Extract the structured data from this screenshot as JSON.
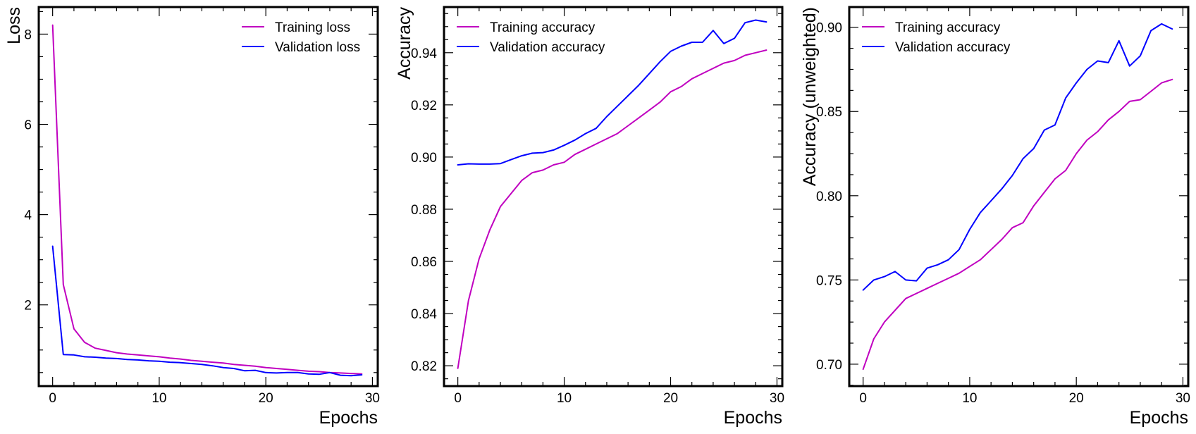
{
  "chart_data": [
    {
      "type": "line",
      "xlabel": "Epochs",
      "ylabel": "Loss",
      "xlim": [
        -1.3,
        30.5
      ],
      "ylim": [
        0.2,
        8.6
      ],
      "xticks": [
        0,
        10,
        20,
        30
      ],
      "yticks": [
        2,
        4,
        6,
        8
      ],
      "ytick_decimals": 0,
      "legend": "top-right",
      "grid": false,
      "x": [
        0,
        1,
        2,
        3,
        4,
        5,
        6,
        7,
        8,
        9,
        10,
        11,
        12,
        13,
        14,
        15,
        16,
        17,
        18,
        19,
        20,
        21,
        22,
        23,
        24,
        25,
        26,
        27,
        28,
        29
      ],
      "series": [
        {
          "name": "Training loss",
          "color": "#c000c0",
          "values": [
            8.2,
            2.45,
            1.47,
            1.17,
            1.04,
            0.99,
            0.94,
            0.91,
            0.89,
            0.87,
            0.85,
            0.82,
            0.8,
            0.77,
            0.75,
            0.73,
            0.71,
            0.68,
            0.66,
            0.64,
            0.61,
            0.59,
            0.57,
            0.55,
            0.53,
            0.52,
            0.5,
            0.49,
            0.48,
            0.47
          ]
        },
        {
          "name": "Validation loss",
          "color": "#0000ff",
          "values": [
            3.3,
            0.9,
            0.89,
            0.85,
            0.84,
            0.82,
            0.81,
            0.79,
            0.78,
            0.76,
            0.75,
            0.73,
            0.72,
            0.7,
            0.68,
            0.65,
            0.61,
            0.59,
            0.54,
            0.55,
            0.5,
            0.49,
            0.5,
            0.5,
            0.47,
            0.46,
            0.5,
            0.44,
            0.43,
            0.45
          ]
        }
      ]
    },
    {
      "type": "line",
      "xlabel": "Epochs",
      "ylabel": "Accuracy",
      "xlim": [
        -1.3,
        30.5
      ],
      "ylim": [
        0.8122,
        0.9575
      ],
      "xticks": [
        0,
        10,
        20,
        30
      ],
      "yticks": [
        0.82,
        0.84,
        0.86,
        0.88,
        0.9,
        0.92,
        0.94
      ],
      "ytick_decimals": 2,
      "legend": "top-left",
      "grid": false,
      "x": [
        0,
        1,
        2,
        3,
        4,
        5,
        6,
        7,
        8,
        9,
        10,
        11,
        12,
        13,
        14,
        15,
        16,
        17,
        18,
        19,
        20,
        21,
        22,
        23,
        24,
        25,
        26,
        27,
        28,
        29
      ],
      "series": [
        {
          "name": "Training accuracy",
          "color": "#c000c0",
          "values": [
            0.819,
            0.845,
            0.861,
            0.872,
            0.881,
            0.886,
            0.891,
            0.894,
            0.895,
            0.897,
            0.898,
            0.901,
            0.903,
            0.905,
            0.907,
            0.909,
            0.912,
            0.915,
            0.918,
            0.921,
            0.925,
            0.927,
            0.93,
            0.932,
            0.934,
            0.936,
            0.937,
            0.939,
            0.94,
            0.941
          ]
        },
        {
          "name": "Validation accuracy",
          "color": "#0000ff",
          "values": [
            0.897,
            0.8974,
            0.8973,
            0.8973,
            0.8975,
            0.899,
            0.9005,
            0.9015,
            0.9017,
            0.9027,
            0.9045,
            0.9065,
            0.909,
            0.911,
            0.9155,
            0.9195,
            0.9235,
            0.9275,
            0.932,
            0.9365,
            0.9405,
            0.9425,
            0.944,
            0.944,
            0.9485,
            0.9435,
            0.9455,
            0.9515,
            0.9525,
            0.9518
          ]
        }
      ]
    },
    {
      "type": "line",
      "xlabel": "Epochs",
      "ylabel": "Accuracy (unweighted)",
      "xlim": [
        -1.3,
        30.5
      ],
      "ylim": [
        0.687,
        0.912
      ],
      "xticks": [
        0,
        10,
        20,
        30
      ],
      "yticks": [
        0.7,
        0.75,
        0.8,
        0.85,
        0.9
      ],
      "ytick_decimals": 2,
      "legend": "top-left",
      "grid": false,
      "x": [
        0,
        1,
        2,
        3,
        4,
        5,
        6,
        7,
        8,
        9,
        10,
        11,
        12,
        13,
        14,
        15,
        16,
        17,
        18,
        19,
        20,
        21,
        22,
        23,
        24,
        25,
        26,
        27,
        28,
        29
      ],
      "series": [
        {
          "name": "Training accuracy",
          "color": "#c000c0",
          "values": [
            0.697,
            0.715,
            0.725,
            0.732,
            0.739,
            0.742,
            0.745,
            0.748,
            0.751,
            0.754,
            0.758,
            0.762,
            0.768,
            0.774,
            0.781,
            0.784,
            0.794,
            0.802,
            0.81,
            0.815,
            0.825,
            0.833,
            0.838,
            0.845,
            0.85,
            0.856,
            0.857,
            0.862,
            0.867,
            0.869
          ]
        },
        {
          "name": "Validation accuracy",
          "color": "#0000ff",
          "values": [
            0.744,
            0.75,
            0.752,
            0.755,
            0.75,
            0.7495,
            0.757,
            0.759,
            0.762,
            0.768,
            0.78,
            0.79,
            0.797,
            0.804,
            0.812,
            0.822,
            0.828,
            0.839,
            0.842,
            0.858,
            0.867,
            0.875,
            0.88,
            0.879,
            0.892,
            0.877,
            0.883,
            0.898,
            0.902,
            0.899
          ]
        }
      ]
    }
  ]
}
